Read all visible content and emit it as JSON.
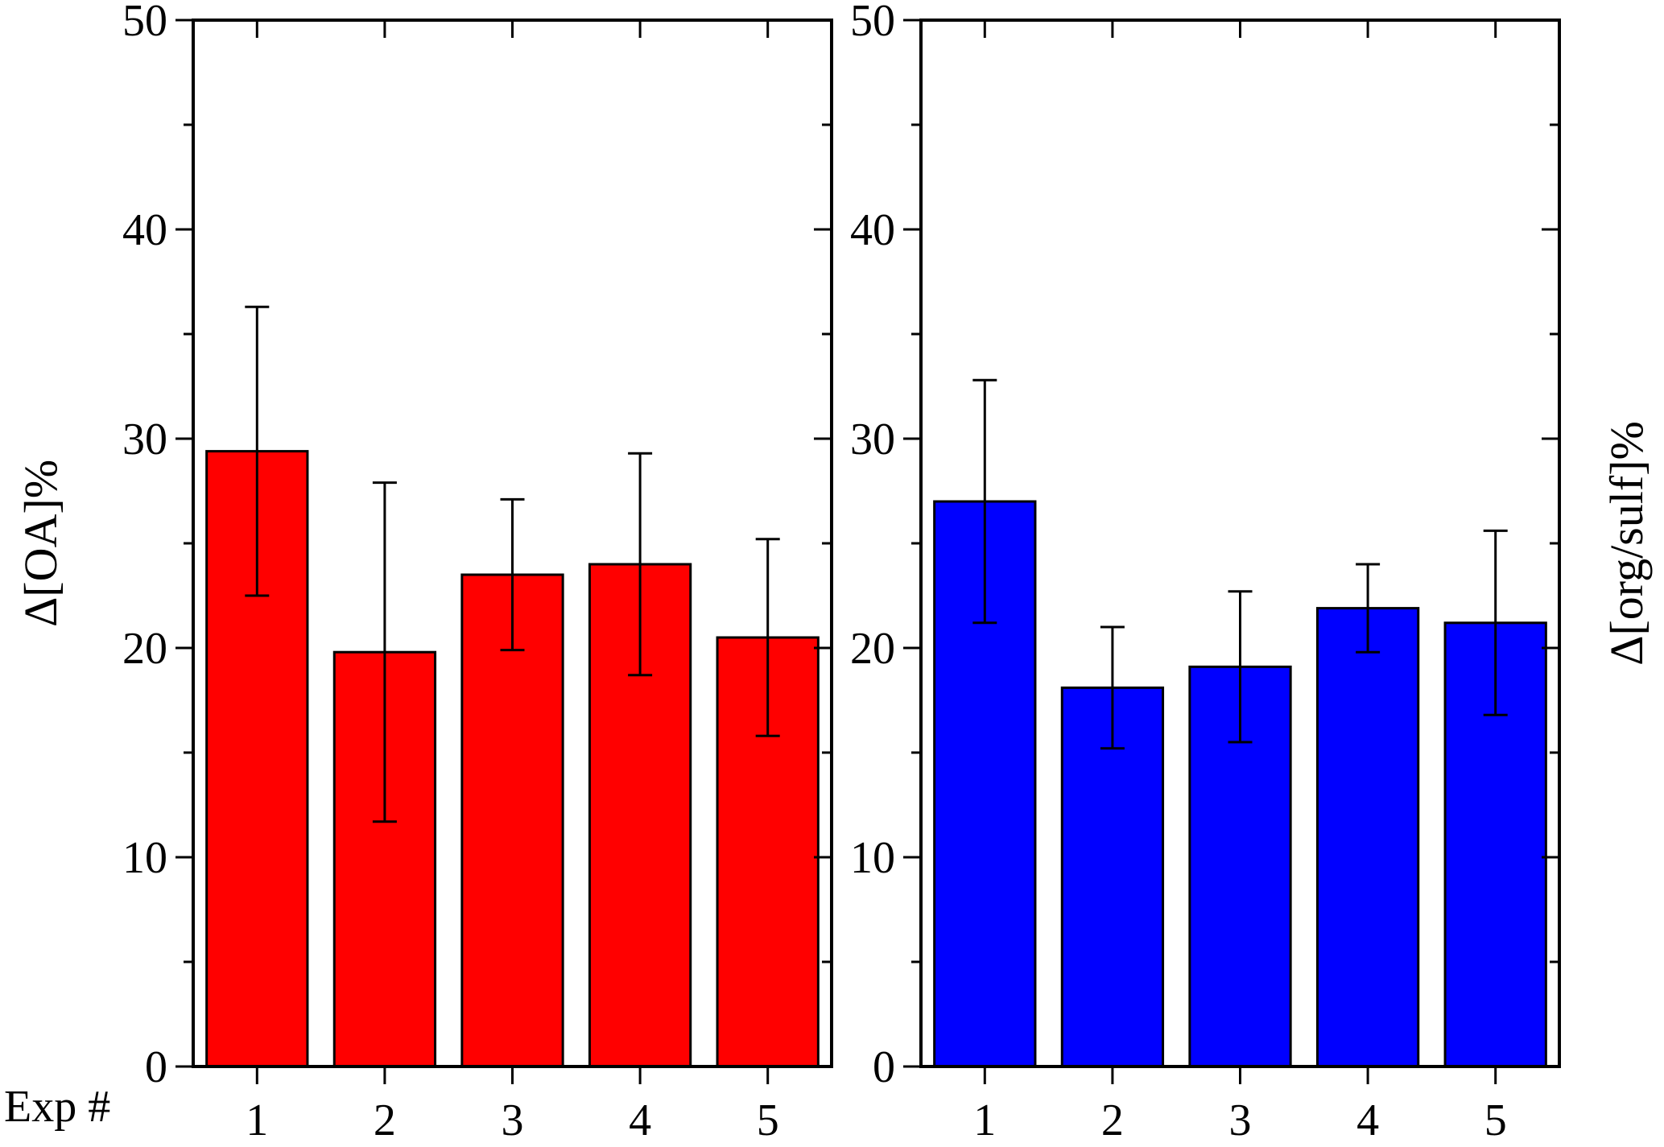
{
  "chart_data": [
    {
      "type": "bar",
      "categories": [
        "1",
        "2",
        "3",
        "4",
        "5"
      ],
      "values": [
        29.4,
        19.8,
        23.5,
        24.0,
        20.5
      ],
      "error_bars": [
        {
          "low": 22.5,
          "high": 36.3
        },
        {
          "low": 11.7,
          "high": 27.9
        },
        {
          "low": 19.9,
          "high": 27.1
        },
        {
          "low": 18.7,
          "high": 29.3
        },
        {
          "low": 15.8,
          "high": 25.2
        }
      ],
      "ylabel": "Δ[OA]%",
      "xlabel": "Exp #",
      "ylim": [
        0,
        50
      ],
      "yticks": [
        "0",
        "10",
        "20",
        "30",
        "40",
        "50"
      ],
      "bar_color": "#ff0000",
      "grid": false
    },
    {
      "type": "bar",
      "categories": [
        "1",
        "2",
        "3",
        "4",
        "5"
      ],
      "values": [
        27.0,
        18.1,
        19.1,
        21.9,
        21.2
      ],
      "error_bars": [
        {
          "low": 21.2,
          "high": 32.8
        },
        {
          "low": 15.2,
          "high": 21.0
        },
        {
          "low": 15.5,
          "high": 22.7
        },
        {
          "low": 19.8,
          "high": 24.0
        },
        {
          "low": 16.8,
          "high": 25.6
        }
      ],
      "ylabel": "Δ[org/sulf]%",
      "ylim": [
        0,
        50
      ],
      "yticks": [
        "0",
        "10",
        "20",
        "30",
        "40",
        "50"
      ],
      "bar_color": "#0000ff",
      "grid": false
    }
  ]
}
